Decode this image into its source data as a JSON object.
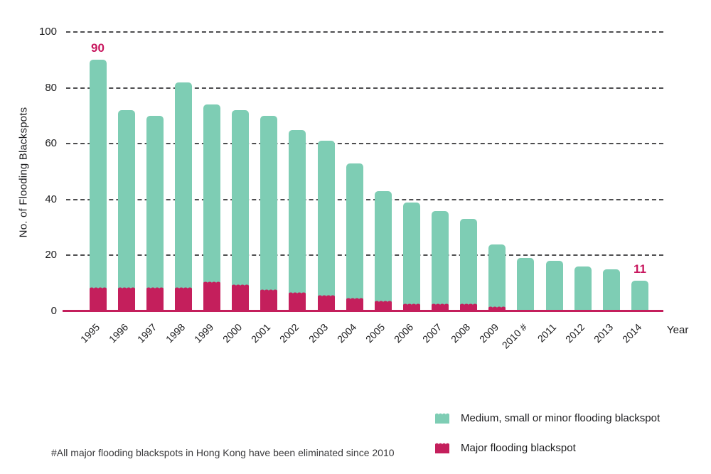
{
  "footnote": "#All major flooding blackspots in Hong Kong have been eliminated since 2010",
  "legend": [
    {
      "label": "Medium, small or minor flooding blackspot",
      "color": "#7ecdb4"
    },
    {
      "label": "Major flooding blackspot",
      "color": "#c41f5c"
    }
  ],
  "colors": {
    "teal": "#7ecdb4",
    "crimson": "#c41f5c",
    "gridline": "#4d4d4f",
    "text": "#1d1d1f",
    "data_label": "#c8175e"
  },
  "chart_data": {
    "type": "bar",
    "stacked": true,
    "title": "",
    "xlabel": "Year",
    "ylabel": "No. of Flooding Blackspots",
    "ylim": [
      0,
      100
    ],
    "yticks": [
      100,
      80,
      60,
      40,
      20,
      0
    ],
    "grid": "horizontal-dashed",
    "legend_position": "bottom-right",
    "categories": [
      "1995",
      "1996",
      "1997",
      "1998",
      "1999",
      "2000",
      "2001",
      "2002",
      "2003",
      "2004",
      "2005",
      "2006",
      "2007",
      "2008",
      "2009",
      "2010 #",
      "2011",
      "2012",
      "2013",
      "2014"
    ],
    "series": [
      {
        "name": "Major flooding blackspot",
        "color": "#c41f5c",
        "values": [
          8,
          8,
          8,
          8,
          10,
          9,
          7,
          6,
          5,
          4,
          3,
          2,
          2,
          2,
          1,
          0,
          0,
          0,
          0,
          0
        ]
      },
      {
        "name": "Medium, small or minor flooding blackspot",
        "color": "#7ecdb4",
        "values": [
          82,
          64,
          62,
          74,
          64,
          63,
          63,
          59,
          56,
          49,
          40,
          37,
          34,
          31,
          23,
          19,
          18,
          16,
          15,
          11
        ]
      }
    ],
    "totals": [
      90,
      72,
      70,
      82,
      74,
      72,
      70,
      65,
      61,
      53,
      43,
      39,
      36,
      33,
      24,
      19,
      18,
      16,
      15,
      11
    ],
    "data_labels": [
      {
        "index": 0,
        "text": "90"
      },
      {
        "index": 19,
        "text": "11"
      }
    ]
  }
}
